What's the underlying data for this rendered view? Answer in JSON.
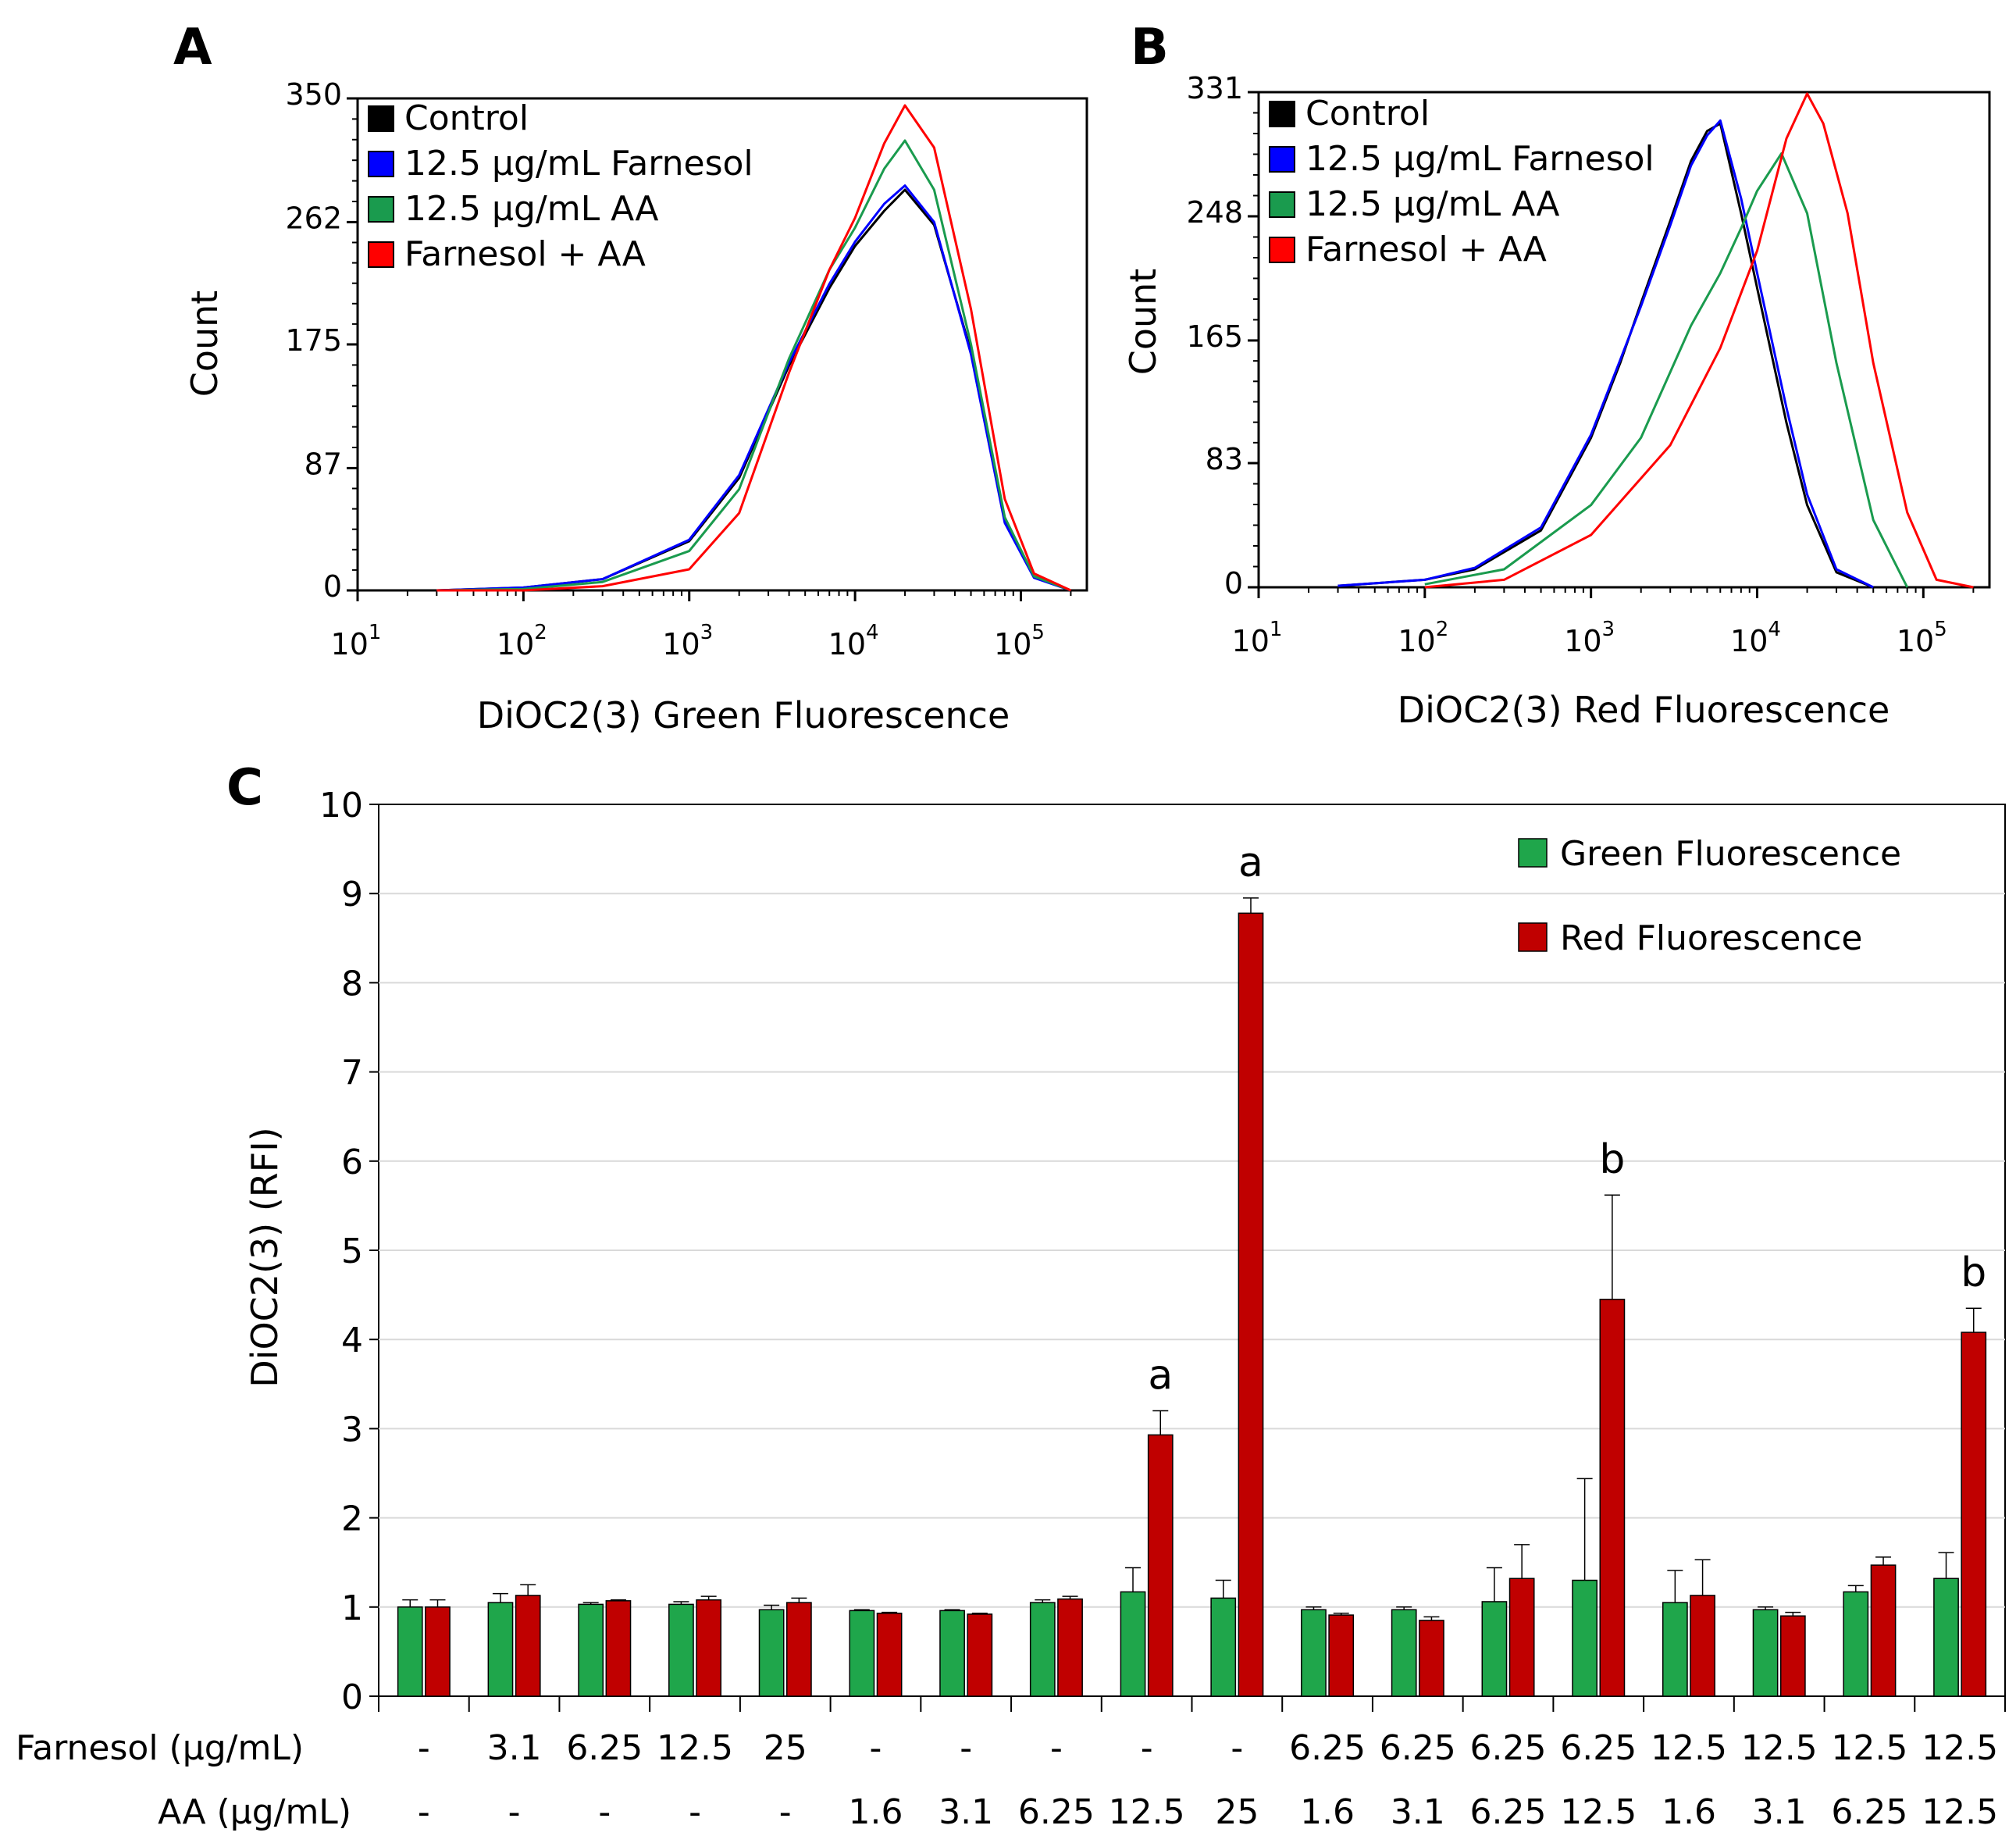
{
  "chart_data": [
    {
      "panel": "A",
      "type": "line",
      "xlabel": "DiOC2(3) Green Fluorescence",
      "ylabel": "Count",
      "xscale": "log",
      "xlim": [
        10,
        250000
      ],
      "ylim": [
        0,
        350
      ],
      "yticks": [
        "0",
        "87",
        "175",
        "262",
        "350"
      ],
      "xticks": [
        {
          "base": "10",
          "exp": "1"
        },
        {
          "base": "10",
          "exp": "2"
        },
        {
          "base": "10",
          "exp": "3"
        },
        {
          "base": "10",
          "exp": "4"
        },
        {
          "base": "10",
          "exp": "5"
        }
      ],
      "legend_position": "top-left",
      "series": [
        {
          "name": "Control",
          "color": "#000000",
          "x": [
            30,
            100,
            300,
            1000,
            2000,
            4000,
            7000,
            10000,
            15000,
            20000,
            30000,
            50000,
            80000,
            120000,
            200000
          ],
          "y": [
            0,
            2,
            8,
            35,
            80,
            160,
            215,
            245,
            270,
            285,
            260,
            170,
            50,
            10,
            0
          ]
        },
        {
          "name": "12.5 µg/mL Farnesol",
          "color": "#0000ff",
          "x": [
            30,
            100,
            300,
            1000,
            2000,
            4000,
            7000,
            10000,
            15000,
            20000,
            30000,
            50000,
            80000,
            120000,
            200000
          ],
          "y": [
            0,
            2,
            8,
            36,
            82,
            162,
            218,
            248,
            275,
            288,
            262,
            168,
            48,
            9,
            0
          ]
        },
        {
          "name": "12.5 µg/mL AA",
          "color": "#1a9b4e",
          "x": [
            30,
            100,
            300,
            1000,
            2000,
            4000,
            7000,
            10000,
            15000,
            20000,
            30000,
            50000,
            80000,
            120000,
            200000
          ],
          "y": [
            0,
            1,
            6,
            28,
            72,
            165,
            228,
            258,
            300,
            320,
            285,
            175,
            52,
            10,
            0
          ]
        },
        {
          "name": "Farnesol + AA",
          "color": "#ff0000",
          "x": [
            30,
            100,
            300,
            1000,
            2000,
            4000,
            7000,
            10000,
            15000,
            20000,
            30000,
            50000,
            80000,
            120000,
            200000
          ],
          "y": [
            0,
            0,
            3,
            15,
            55,
            155,
            228,
            265,
            318,
            345,
            315,
            200,
            65,
            12,
            0
          ]
        }
      ]
    },
    {
      "panel": "B",
      "type": "line",
      "xlabel": "DiOC2(3) Red Fluorescence",
      "ylabel": "Count",
      "xscale": "log",
      "xlim": [
        10,
        250000
      ],
      "ylim": [
        0,
        331
      ],
      "yticks": [
        "0",
        "83",
        "165",
        "248",
        "331"
      ],
      "xticks": [
        {
          "base": "10",
          "exp": "1"
        },
        {
          "base": "10",
          "exp": "2"
        },
        {
          "base": "10",
          "exp": "3"
        },
        {
          "base": "10",
          "exp": "4"
        },
        {
          "base": "10",
          "exp": "5"
        }
      ],
      "legend_position": "top-left",
      "series": [
        {
          "name": "Control",
          "color": "#000000",
          "x": [
            30,
            100,
            200,
            500,
            1000,
            1500,
            2000,
            3000,
            4000,
            5000,
            6000,
            8000,
            10000,
            15000,
            20000,
            30000,
            50000
          ],
          "y": [
            1,
            5,
            12,
            38,
            100,
            150,
            190,
            245,
            285,
            305,
            310,
            250,
            200,
            110,
            55,
            10,
            0
          ]
        },
        {
          "name": "12.5 µg/mL Farnesol",
          "color": "#0000ff",
          "x": [
            30,
            100,
            200,
            500,
            1000,
            1500,
            2000,
            3000,
            4000,
            5000,
            6000,
            8000,
            10000,
            15000,
            20000,
            30000,
            50000
          ],
          "y": [
            1,
            5,
            13,
            40,
            102,
            152,
            188,
            242,
            282,
            302,
            312,
            260,
            210,
            120,
            62,
            12,
            0
          ]
        },
        {
          "name": "12.5 µg/mL AA",
          "color": "#1a9b4e",
          "x": [
            100,
            300,
            1000,
            2000,
            4000,
            6000,
            8000,
            10000,
            14000,
            20000,
            30000,
            50000,
            80000
          ],
          "y": [
            2,
            12,
            55,
            100,
            175,
            210,
            240,
            265,
            290,
            250,
            150,
            45,
            0
          ]
        },
        {
          "name": "Farnesol + AA",
          "color": "#ff0000",
          "x": [
            100,
            300,
            1000,
            3000,
            6000,
            10000,
            15000,
            20000,
            25000,
            35000,
            50000,
            80000,
            120000,
            200000
          ],
          "y": [
            0,
            5,
            35,
            95,
            160,
            225,
            300,
            330,
            310,
            250,
            150,
            50,
            5,
            0
          ]
        }
      ]
    },
    {
      "panel": "C",
      "type": "bar",
      "ylabel": "DiOC2(3) (RFI)",
      "ylim": [
        0,
        10
      ],
      "yticks": [
        "0",
        "1",
        "2",
        "3",
        "4",
        "5",
        "6",
        "7",
        "8",
        "9",
        "10"
      ],
      "grid": true,
      "legend_position": "top-right",
      "row_labels": [
        "Farnesol (µg/mL)",
        "AA (µg/mL)"
      ],
      "categories_farnesol": [
        "-",
        "3.1",
        "6.25",
        "12.5",
        "25",
        "-",
        "-",
        "-",
        "-",
        "-",
        "6.25",
        "6.25",
        "6.25",
        "6.25",
        "12.5",
        "12.5",
        "12.5",
        "12.5"
      ],
      "categories_aa": [
        "-",
        "-",
        "-",
        "-",
        "-",
        "1.6",
        "3.1",
        "6.25",
        "12.5",
        "25",
        "1.6",
        "3.1",
        "6.25",
        "12.5",
        "1.6",
        "3.1",
        "6.25",
        "12.5"
      ],
      "series": [
        {
          "name": "Green Fluorescence",
          "color": "#1fa64b",
          "values": [
            1.0,
            1.05,
            1.03,
            1.03,
            0.97,
            0.96,
            0.96,
            1.05,
            1.17,
            1.1,
            0.97,
            0.97,
            1.06,
            1.3,
            1.05,
            0.97,
            1.17,
            1.32
          ],
          "errors": [
            0.08,
            0.1,
            0.02,
            0.03,
            0.05,
            0.01,
            0.01,
            0.03,
            0.27,
            0.2,
            0.03,
            0.03,
            0.38,
            1.14,
            0.36,
            0.03,
            0.07,
            0.29
          ]
        },
        {
          "name": "Red Fluorescence",
          "color": "#c00000",
          "values": [
            1.0,
            1.13,
            1.07,
            1.08,
            1.05,
            0.93,
            0.92,
            1.09,
            2.93,
            8.78,
            0.91,
            0.85,
            1.32,
            4.45,
            1.13,
            0.9,
            1.47,
            4.08
          ],
          "errors": [
            0.08,
            0.12,
            0.01,
            0.04,
            0.05,
            0.01,
            0.01,
            0.03,
            0.27,
            0.17,
            0.02,
            0.04,
            0.38,
            1.17,
            0.4,
            0.04,
            0.09,
            0.27
          ]
        }
      ],
      "annotations": [
        {
          "index": 8,
          "text": "a"
        },
        {
          "index": 9,
          "text": "a"
        },
        {
          "index": 13,
          "text": "b"
        },
        {
          "index": 17,
          "text": "b"
        }
      ]
    }
  ]
}
